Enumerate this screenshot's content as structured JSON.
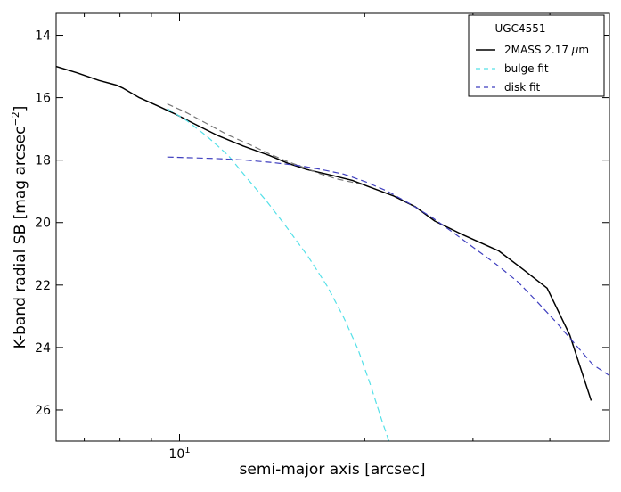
{
  "chart_data": {
    "type": "line",
    "title": "",
    "xlabel": "semi-major axis [arcsec]",
    "ylabel_main": "K-band radial SB [mag arcsec",
    "ylabel_exp": "−2",
    "ylabel_tail": "]",
    "x_scale": "log",
    "xlim": [
      6.3,
      50
    ],
    "ylim": [
      27,
      13.3
    ],
    "y_inverted": true,
    "grid": false,
    "x_major_ticks": [
      {
        "value": 10,
        "base": "10",
        "exp": "1"
      }
    ],
    "x_minor_ticks": [
      7,
      8,
      9,
      20,
      30,
      40
    ],
    "y_ticks": [
      {
        "value": 14,
        "label": "14"
      },
      {
        "value": 16,
        "label": "16"
      },
      {
        "value": 18,
        "label": "18"
      },
      {
        "value": 20,
        "label": "20"
      },
      {
        "value": 22,
        "label": "22"
      },
      {
        "value": 24,
        "label": "24"
      },
      {
        "value": 26,
        "label": "26"
      }
    ],
    "legend": {
      "placement": "top-right",
      "title": "UGC4551",
      "entries": [
        {
          "series": "2mass",
          "main": "2MASS 2.17 ",
          "mu": "μ",
          "unit": "m"
        },
        {
          "series": "bulge",
          "main": "bulge fit",
          "mu": "",
          "unit": ""
        },
        {
          "series": "disk",
          "main": "disk fit",
          "mu": "",
          "unit": ""
        }
      ]
    },
    "series": [
      {
        "id": "2mass",
        "name": "2MASS 2.17 μm",
        "color": "#000000",
        "style": "solid",
        "points": [
          [
            6.3,
            15.0
          ],
          [
            6.8,
            15.2
          ],
          [
            7.4,
            15.45
          ],
          [
            7.9,
            15.6
          ],
          [
            8.1,
            15.7
          ],
          [
            8.6,
            16.0
          ],
          [
            9.3,
            16.3
          ],
          [
            9.9,
            16.55
          ],
          [
            10.6,
            16.85
          ],
          [
            11.5,
            17.2
          ],
          [
            12.7,
            17.55
          ],
          [
            14.0,
            17.85
          ],
          [
            15.0,
            18.1
          ],
          [
            16.1,
            18.3
          ],
          [
            17.8,
            18.5
          ],
          [
            19.1,
            18.65
          ],
          [
            20.3,
            18.85
          ],
          [
            22.3,
            19.15
          ],
          [
            24.2,
            19.5
          ],
          [
            26.0,
            19.95
          ],
          [
            28.6,
            20.35
          ],
          [
            33.0,
            20.9
          ],
          [
            36.2,
            21.5
          ],
          [
            39.6,
            22.1
          ],
          [
            43.1,
            23.6
          ],
          [
            46.7,
            25.7
          ]
        ]
      },
      {
        "id": "combined",
        "name": "",
        "color": "#777777",
        "style": "dashed",
        "points": [
          [
            9.55,
            16.2
          ],
          [
            10.2,
            16.45
          ],
          [
            11.0,
            16.8
          ],
          [
            12.0,
            17.2
          ],
          [
            13.0,
            17.5
          ],
          [
            14.0,
            17.8
          ],
          [
            15.0,
            18.05
          ],
          [
            16.0,
            18.25
          ],
          [
            17.0,
            18.45
          ],
          [
            18.0,
            18.6
          ],
          [
            19.0,
            18.7
          ],
          [
            20.0,
            18.8
          ]
        ]
      },
      {
        "id": "bulge",
        "name": "bulge fit",
        "color": "#55e0e8",
        "style": "dashed",
        "points": [
          [
            9.55,
            16.35
          ],
          [
            10.3,
            16.75
          ],
          [
            11.1,
            17.25
          ],
          [
            12.0,
            17.85
          ],
          [
            12.9,
            18.6
          ],
          [
            13.9,
            19.35
          ],
          [
            15.0,
            20.2
          ],
          [
            16.2,
            21.1
          ],
          [
            17.4,
            22.05
          ],
          [
            18.5,
            23.05
          ],
          [
            19.5,
            24.05
          ],
          [
            20.4,
            25.15
          ],
          [
            21.3,
            26.3
          ],
          [
            21.9,
            27.0
          ]
        ]
      },
      {
        "id": "disk",
        "name": "disk fit",
        "color": "#3f3fbf",
        "style": "dashed",
        "points": [
          [
            9.55,
            17.9
          ],
          [
            10.3,
            17.92
          ],
          [
            11.5,
            17.95
          ],
          [
            12.8,
            18.0
          ],
          [
            14.2,
            18.08
          ],
          [
            15.7,
            18.18
          ],
          [
            17.0,
            18.3
          ],
          [
            18.5,
            18.45
          ],
          [
            20.1,
            18.7
          ],
          [
            21.8,
            19.0
          ],
          [
            23.7,
            19.4
          ],
          [
            25.8,
            19.85
          ],
          [
            28.0,
            20.35
          ],
          [
            30.3,
            20.85
          ],
          [
            32.8,
            21.35
          ],
          [
            35.5,
            21.9
          ],
          [
            38.0,
            22.5
          ],
          [
            41.0,
            23.2
          ],
          [
            44.0,
            23.9
          ],
          [
            47.0,
            24.55
          ],
          [
            50.0,
            24.9
          ]
        ]
      }
    ]
  }
}
